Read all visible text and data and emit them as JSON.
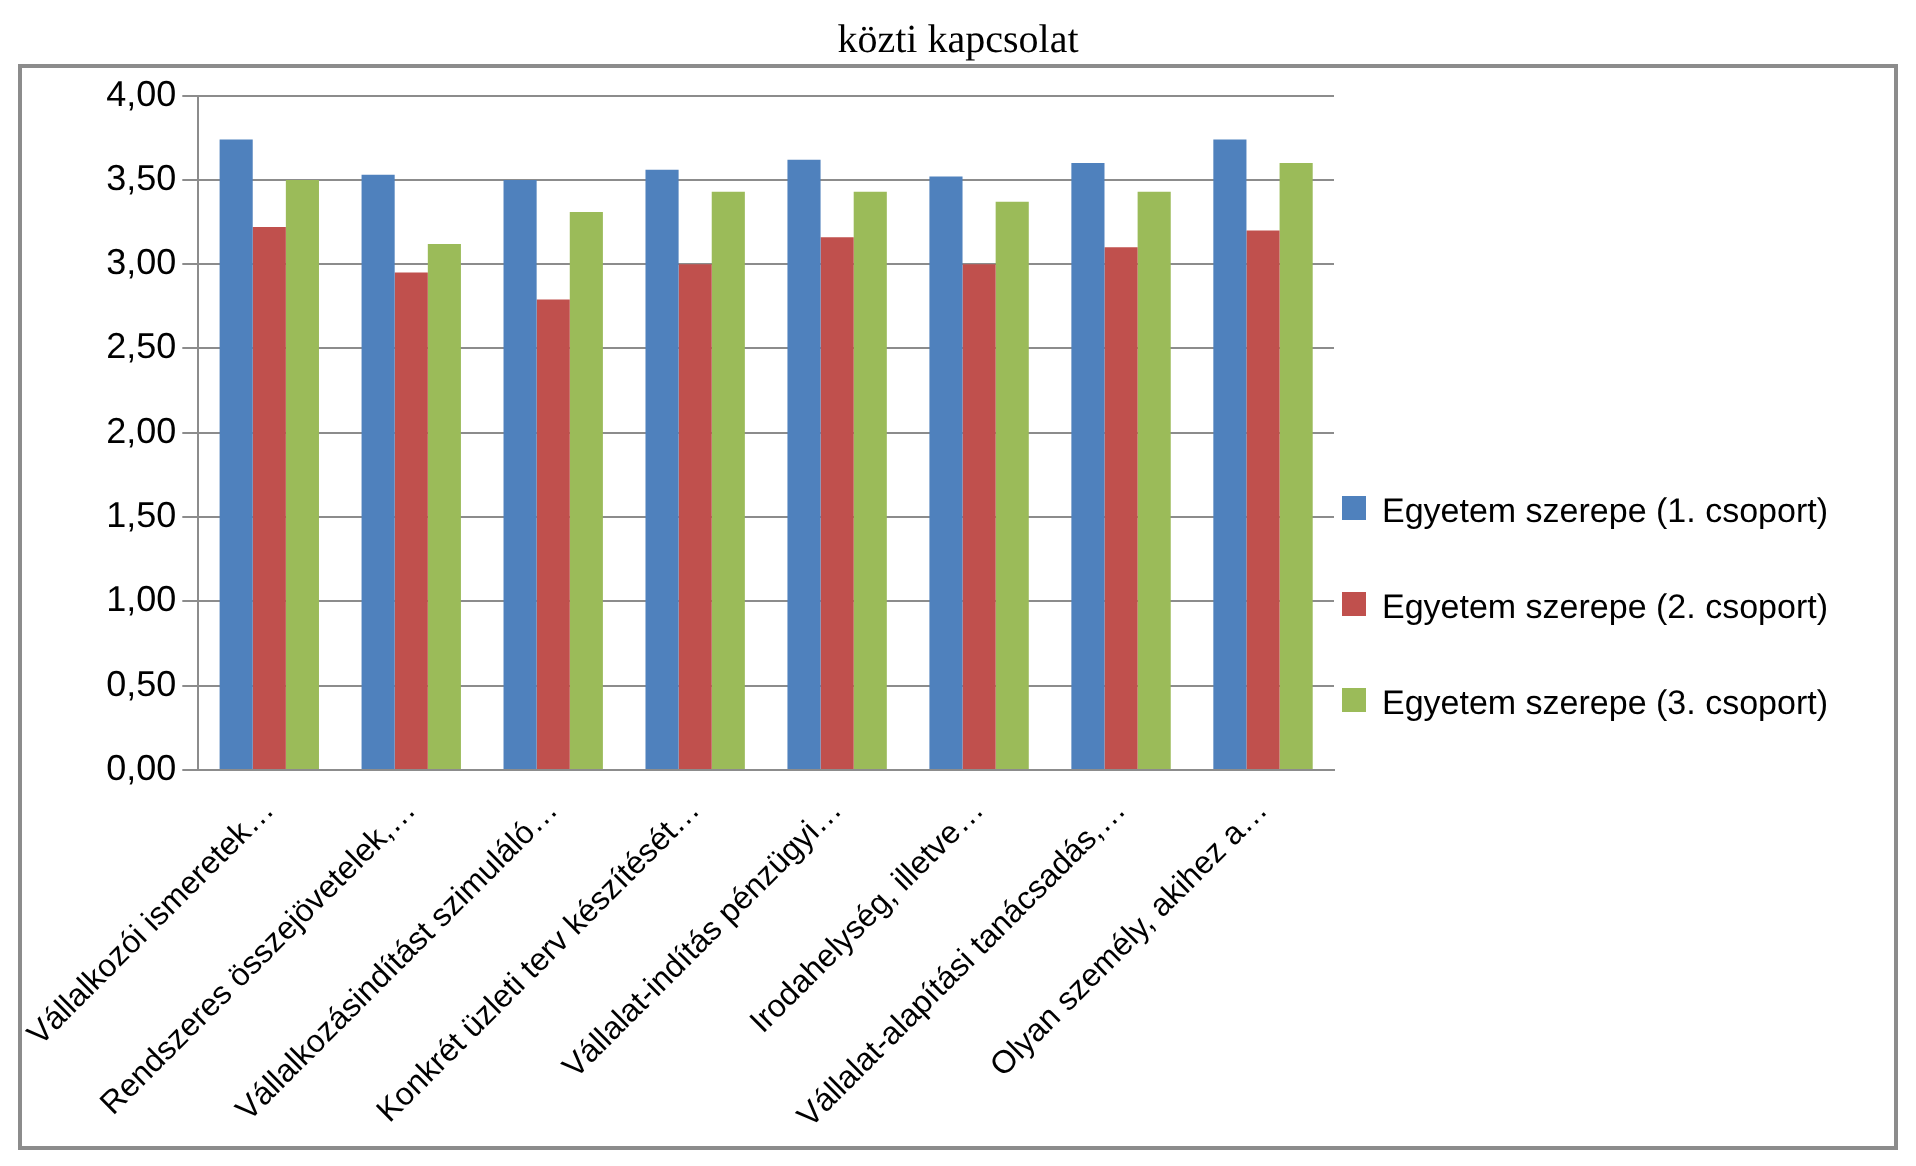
{
  "chart_data": {
    "type": "bar",
    "title": "közti kapcsolat",
    "categories": [
      "Vállalkozói ismeretek…",
      "Rendszeres összejövetelek,…",
      "Vállalkozásindítást szimuláló…",
      "Konkrét üzleti terv készítését…",
      "Vállalat-indítás pénzügyi…",
      "Irodahelység, illetve…",
      "Vállalat-alapítási tanácsadás,…",
      "Olyan személy, akihez a…"
    ],
    "series": [
      {
        "name": "Egyetem szerepe (1. csoport)",
        "color": "#4f81bd",
        "values": [
          3.74,
          3.53,
          3.5,
          3.56,
          3.62,
          3.52,
          3.6,
          3.74
        ]
      },
      {
        "name": "Egyetem szerepe (2. csoport)",
        "color": "#c0504d",
        "values": [
          3.22,
          2.95,
          2.79,
          3.0,
          3.16,
          3.0,
          3.1,
          3.2
        ]
      },
      {
        "name": "Egyetem szerepe (3. csoport)",
        "color": "#9bbb59",
        "values": [
          3.5,
          3.12,
          3.31,
          3.43,
          3.43,
          3.37,
          3.43,
          3.6
        ]
      }
    ],
    "ylim": [
      0,
      4
    ],
    "yticks": [
      {
        "value": 0,
        "label": "0,00"
      },
      {
        "value": 0.5,
        "label": "0,50"
      },
      {
        "value": 1,
        "label": "1,00"
      },
      {
        "value": 1.5,
        "label": "1,50"
      },
      {
        "value": 2,
        "label": "2,00"
      },
      {
        "value": 2.5,
        "label": "2,50"
      },
      {
        "value": 3,
        "label": "3,00"
      },
      {
        "value": 3.5,
        "label": "3,50"
      },
      {
        "value": 4,
        "label": "4,00"
      }
    ],
    "grid": "y",
    "legend": "right"
  }
}
